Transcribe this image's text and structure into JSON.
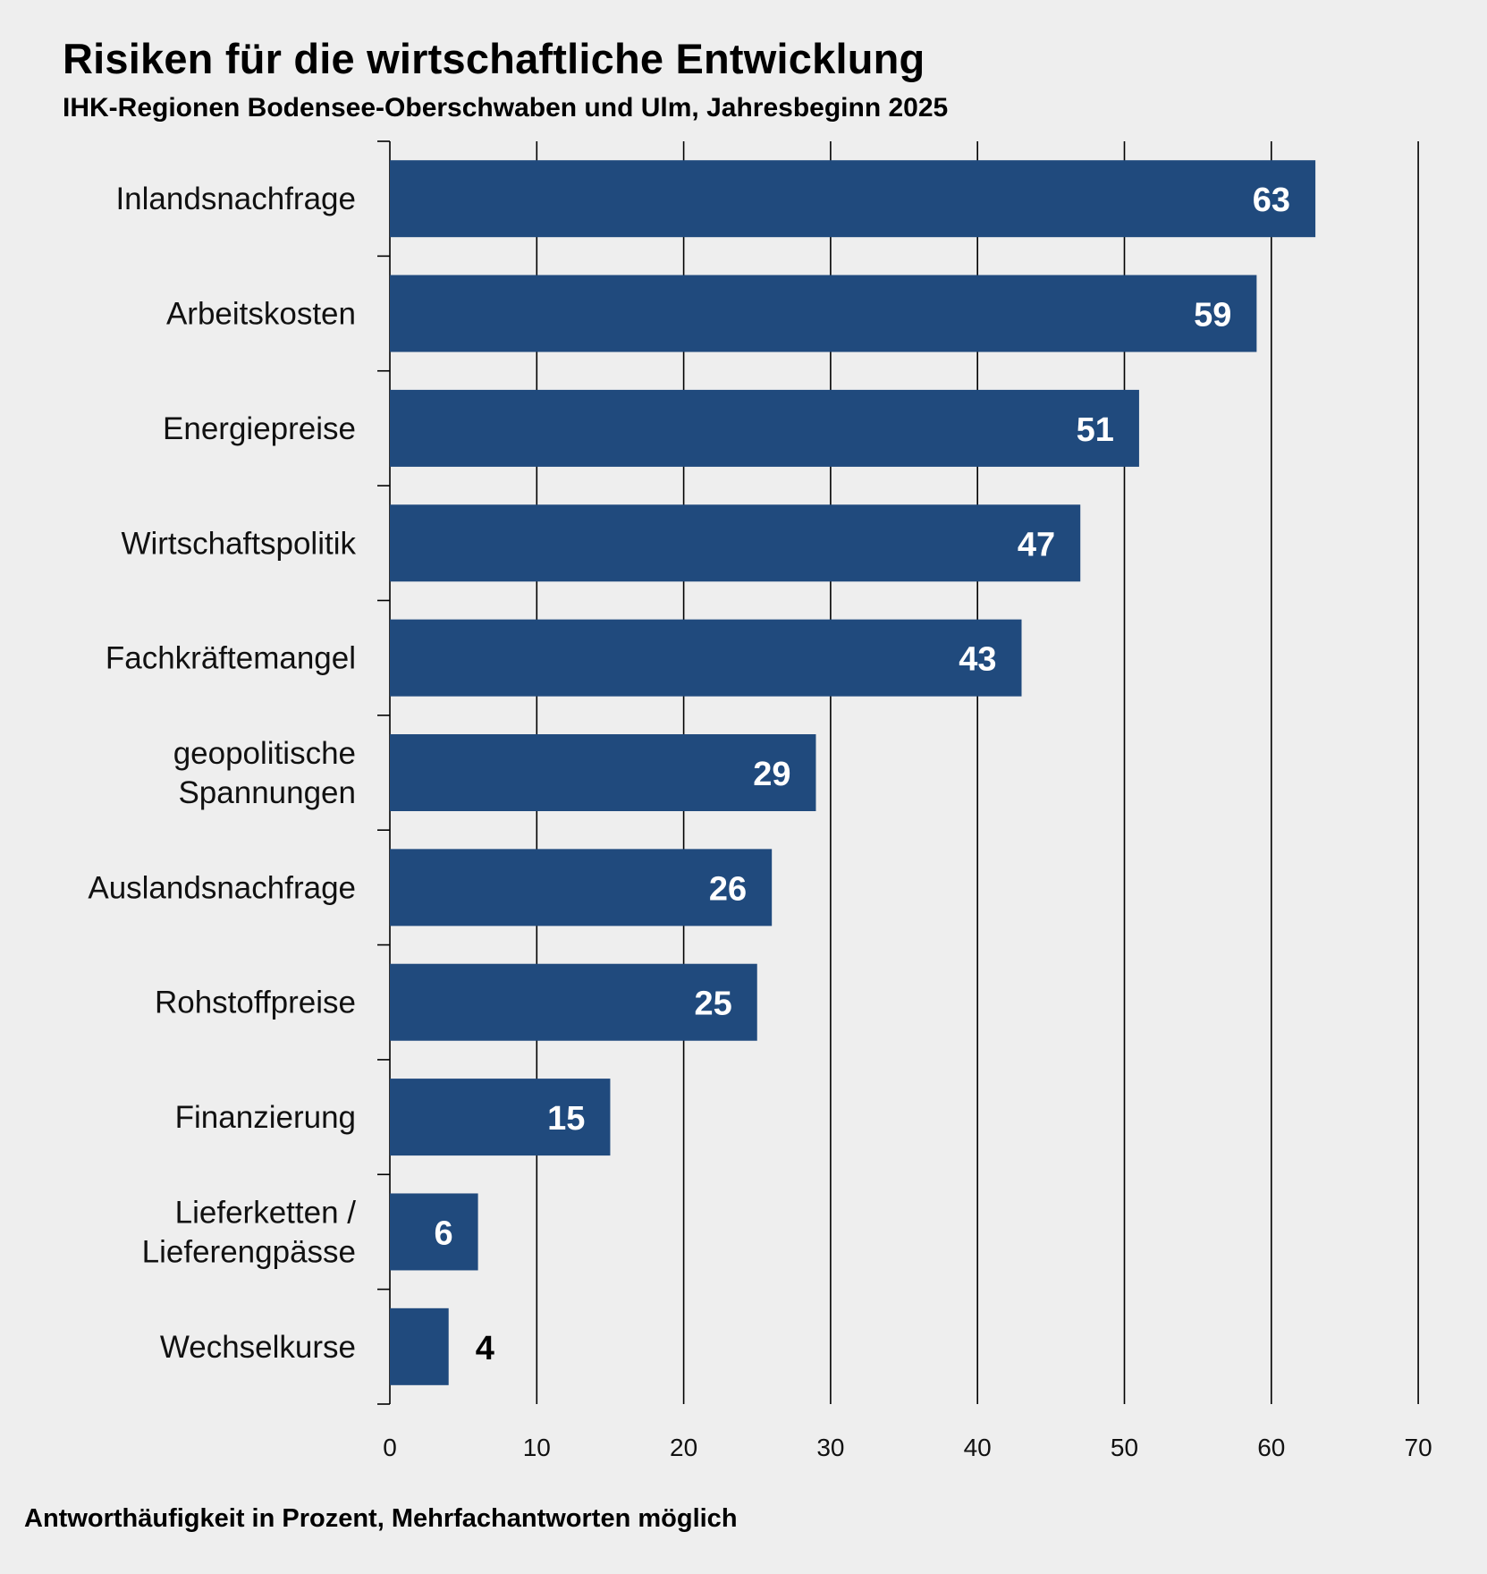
{
  "header": {
    "title": "Risiken für die wirtschaftliche Entwicklung",
    "subtitle": "IHK-Regionen Bodensee-Oberschwaben und Ulm, Jahresbeginn 2025"
  },
  "footer": {
    "note": "Antworthäufigkeit  in Prozent, Mehrfachantworten  möglich"
  },
  "colors": {
    "bar": "#204a7d",
    "background": "#eeeeee",
    "label_inside": "#ffffff",
    "label_outside": "#000000"
  },
  "chart_data": {
    "type": "bar",
    "orientation": "horizontal",
    "title": "Risiken für die wirtschaftliche Entwicklung",
    "subtitle": "IHK-Regionen Bodensee-Oberschwaben und Ulm, Jahresbeginn 2025",
    "xlabel": "Antworthäufigkeit  in Prozent, Mehrfachantworten  möglich",
    "ylabel": "",
    "xlim": [
      0,
      70
    ],
    "xticks": [
      0,
      10,
      20,
      30,
      40,
      50,
      60,
      70
    ],
    "grid": true,
    "categories": [
      [
        "Inlandsnachfrage"
      ],
      [
        "Arbeitskosten"
      ],
      [
        "Energiepreise"
      ],
      [
        "Wirtschaftspolitik"
      ],
      [
        "Fachkräftemangel"
      ],
      [
        "geopolitische",
        "Spannungen"
      ],
      [
        "Auslandsnachfrage"
      ],
      [
        "Rohstoffpreise"
      ],
      [
        "Finanzierung"
      ],
      [
        "Lieferketten /",
        "Lieferengpässe"
      ],
      [
        "Wechselkurse"
      ]
    ],
    "values": [
      63,
      59,
      51,
      47,
      43,
      29,
      26,
      25,
      15,
      6,
      4
    ]
  }
}
